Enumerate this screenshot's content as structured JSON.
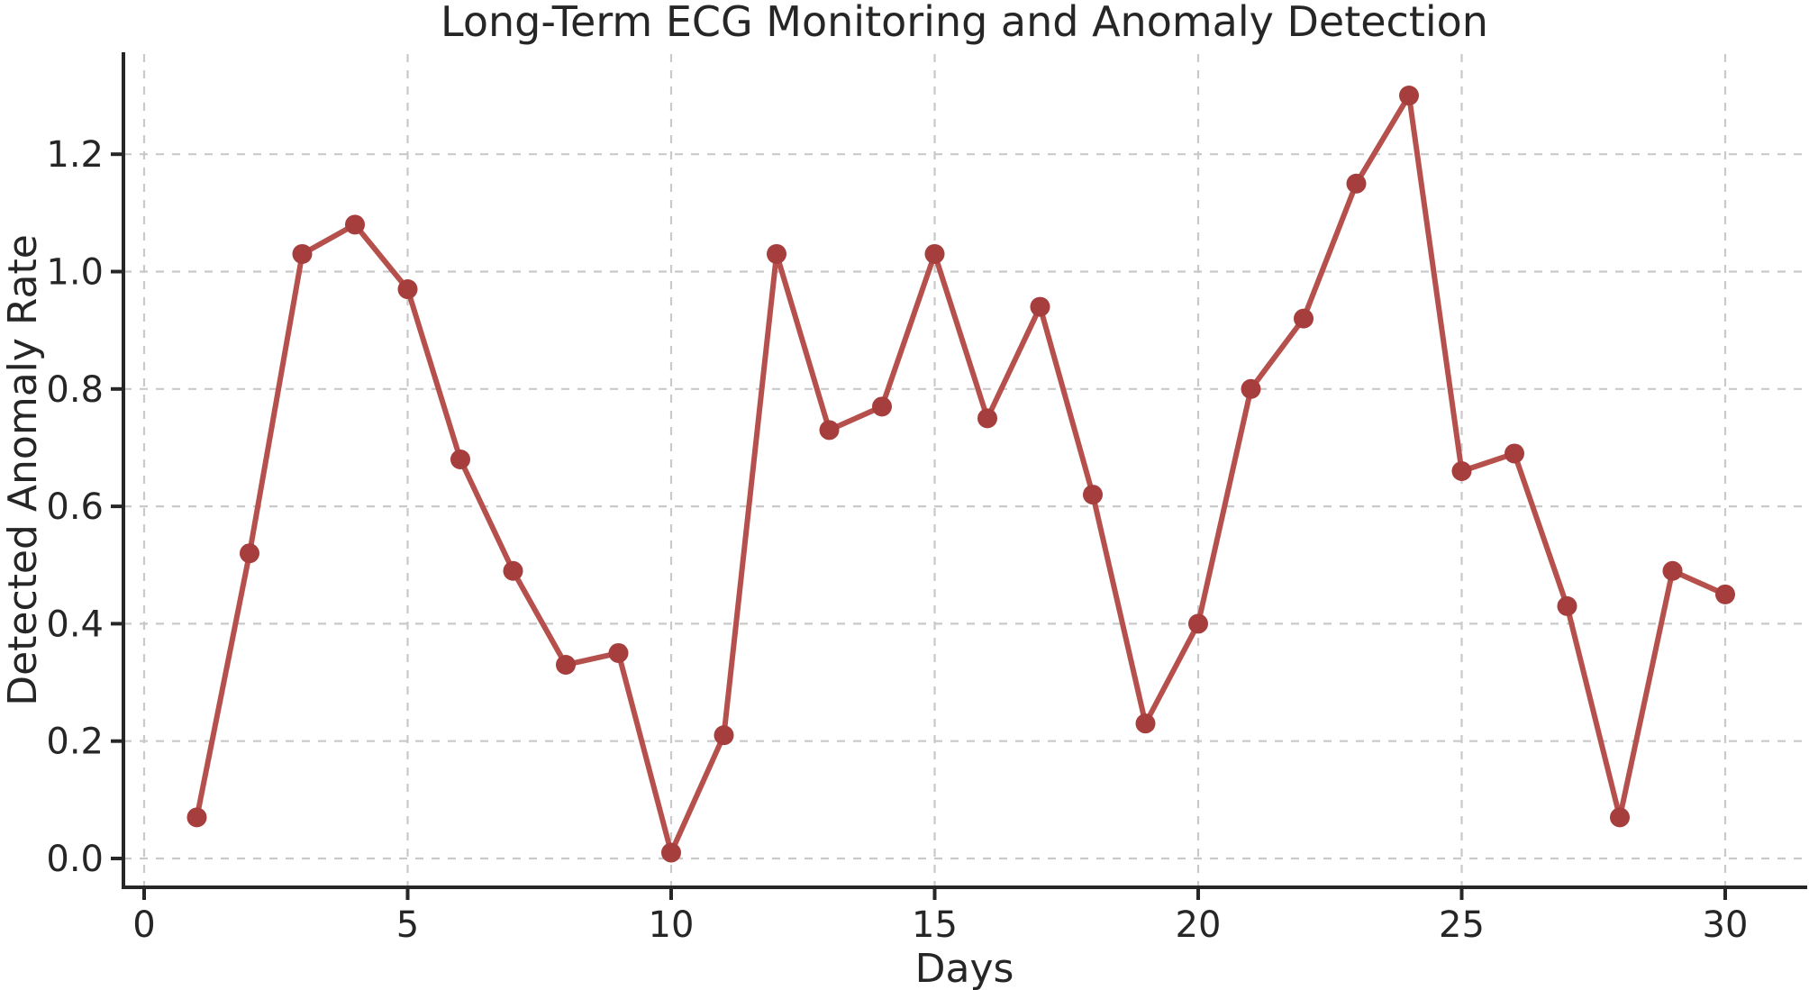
{
  "chart_data": {
    "type": "line",
    "title": "Long-Term ECG Monitoring and Anomaly Detection",
    "xlabel": "Days",
    "ylabel": "Detected Anomaly Rate",
    "series": [
      {
        "name": "Detected Anomaly Rate",
        "x": [
          1,
          2,
          3,
          4,
          5,
          6,
          7,
          8,
          9,
          10,
          11,
          12,
          13,
          14,
          15,
          16,
          17,
          18,
          19,
          20,
          21,
          22,
          23,
          24,
          25,
          26,
          27,
          28,
          29,
          30
        ],
        "values": [
          0.07,
          0.52,
          1.03,
          1.08,
          0.97,
          0.68,
          0.49,
          0.33,
          0.35,
          0.01,
          0.21,
          1.03,
          0.73,
          0.77,
          1.03,
          0.75,
          0.94,
          0.62,
          0.23,
          0.4,
          0.8,
          0.92,
          1.15,
          1.3,
          0.66,
          0.69,
          0.43,
          0.07,
          0.49,
          0.45
        ]
      }
    ],
    "xticks": [
      0,
      5,
      10,
      15,
      20,
      25,
      30
    ],
    "yticks": [
      0.0,
      0.2,
      0.4,
      0.6,
      0.8,
      1.0,
      1.2
    ],
    "xlim": [
      -0.45,
      31.5
    ],
    "ylim": [
      -0.05,
      1.375
    ],
    "grid": "dashed-both",
    "legend": "none",
    "line_color": "#b5504c",
    "marker_color": "#a63e3d",
    "marker_shape": "circle",
    "text_color": "#262626"
  }
}
